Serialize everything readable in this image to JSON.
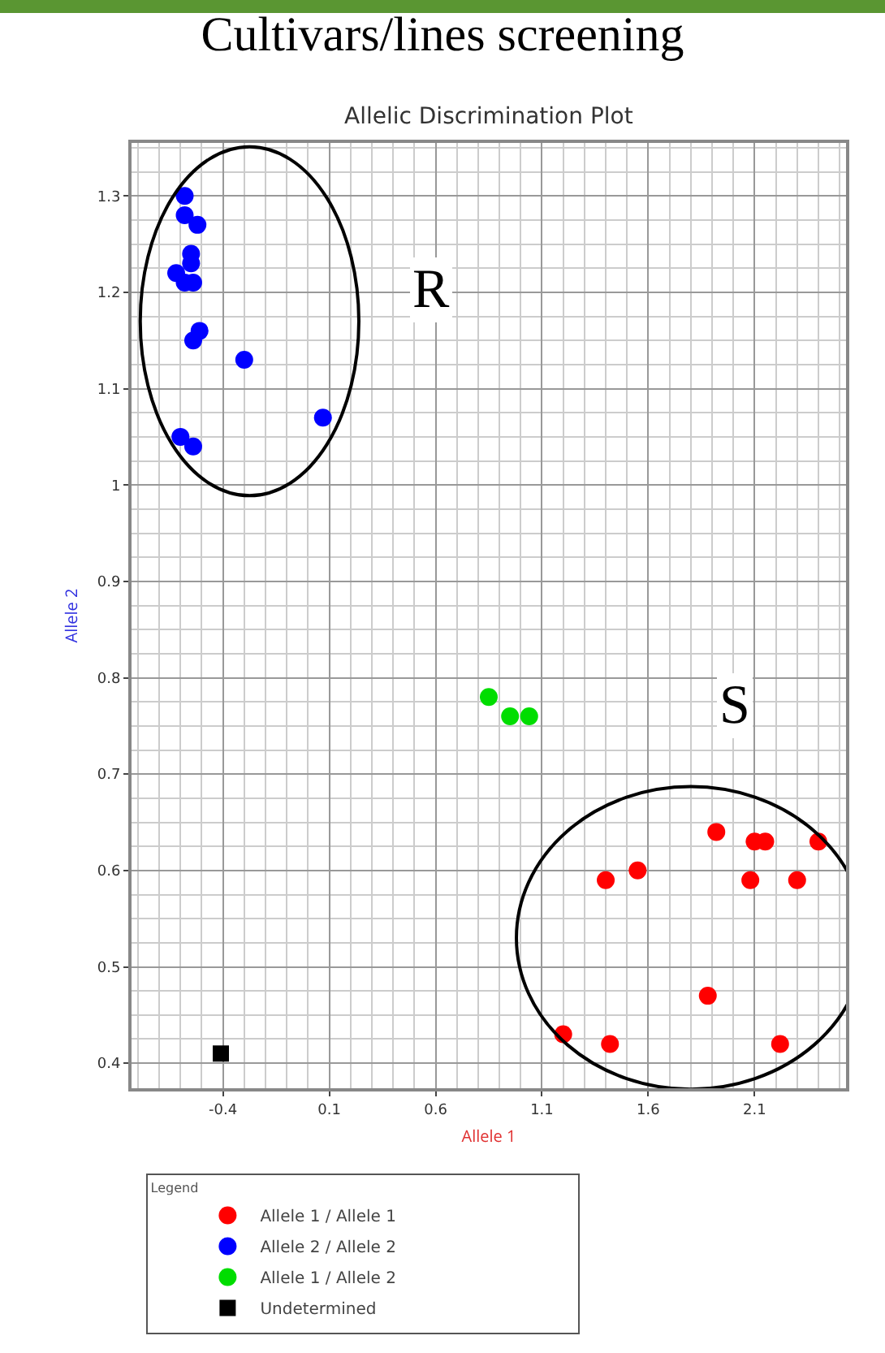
{
  "chart_data": {
    "type": "scatter",
    "title": "Cultivars/lines screening",
    "subtitle": "Allelic Discrimination Plot",
    "xlabel": "Allele 1",
    "ylabel": "Allele 2",
    "legend_title": "Legend",
    "xlim": [
      -0.83,
      2.53
    ],
    "ylim": [
      0.374,
      1.355
    ],
    "xticks": [
      -0.4,
      0.1,
      0.6,
      1.1,
      1.6,
      2.1
    ],
    "yticks": [
      0.4,
      0.5,
      0.6,
      0.7,
      0.8,
      0.9,
      1.0,
      1.1,
      1.2,
      1.3
    ],
    "grid": true,
    "legend": "bottom",
    "marker": "circle",
    "series": [
      {
        "name": "Allele 1 / Allele 1",
        "color": "#ff0000",
        "x": [
          1.92,
          2.1,
          2.15,
          2.4,
          1.55,
          1.4,
          2.08,
          2.3,
          1.88,
          1.2,
          1.42,
          2.22
        ],
        "values": [
          0.64,
          0.63,
          0.63,
          0.63,
          0.6,
          0.59,
          0.59,
          0.59,
          0.47,
          0.43,
          0.42,
          0.42
        ]
      },
      {
        "name": "Allele 2 / Allele 2",
        "color": "#0000ff",
        "x": [
          -0.58,
          -0.58,
          -0.52,
          -0.55,
          -0.62,
          -0.55,
          -0.58,
          -0.54,
          -0.51,
          -0.54,
          -0.3,
          0.07,
          -0.6,
          -0.54
        ],
        "values": [
          1.3,
          1.28,
          1.27,
          1.24,
          1.22,
          1.23,
          1.21,
          1.21,
          1.16,
          1.15,
          1.13,
          1.07,
          1.05,
          1.04
        ]
      },
      {
        "name": "Allele 1 / Allele 2",
        "color": "#00dd00",
        "x": [
          0.85,
          0.95,
          1.04
        ],
        "values": [
          0.78,
          0.76,
          0.76
        ]
      },
      {
        "name": "Undetermined",
        "color": "#000000",
        "marker": "square",
        "x": [
          -0.41
        ],
        "values": [
          0.41
        ]
      }
    ],
    "annotations": [
      "R",
      "S"
    ]
  }
}
